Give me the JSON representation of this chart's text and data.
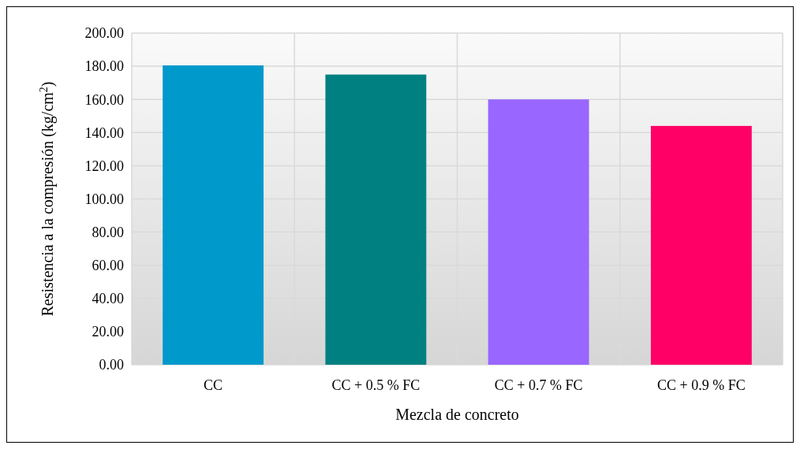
{
  "chart_data": {
    "type": "bar",
    "xlabel": "Mezcla de concreto",
    "ylabel": "Resistencia a la compresión (kg/cm$^{2}$)",
    "categories": [
      "CC",
      "CC + 0.5 % FC",
      "CC + 0.7 % FC",
      "CC + 0.9 % FC"
    ],
    "values": [
      180.5,
      175,
      160,
      144
    ],
    "colors": [
      "#0099cc",
      "#008080",
      "#9966ff",
      "#ff0066"
    ],
    "ylim": [
      0,
      200
    ],
    "yticks": [
      {
        "value": 0,
        "label": "0.00"
      },
      {
        "value": 20,
        "label": "20.00"
      },
      {
        "value": 40,
        "label": "40.00"
      },
      {
        "value": 60,
        "label": "60.00"
      },
      {
        "value": 80,
        "label": "80.00"
      },
      {
        "value": 100,
        "label": "100.00"
      },
      {
        "value": 120,
        "label": "120.00"
      },
      {
        "value": 140,
        "label": "140.00"
      },
      {
        "value": 160,
        "label": "160.00"
      },
      {
        "value": 180,
        "label": "180.00"
      },
      {
        "value": 200,
        "label": "200.00"
      }
    ],
    "grid": true
  }
}
